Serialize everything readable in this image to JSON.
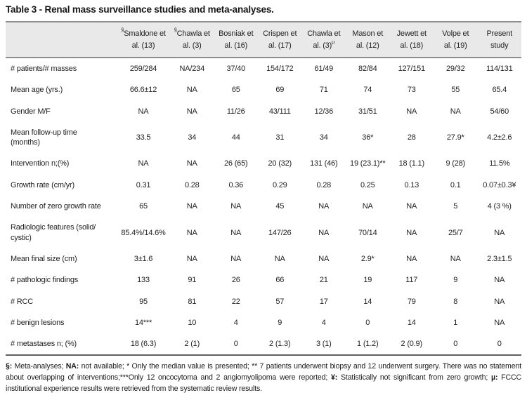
{
  "title": "Table 3 - Renal mass surveillance studies and meta-analyses.",
  "table": {
    "columns": [
      {
        "prefix": "§",
        "line1": "Smaldone et",
        "line2": "al. (13)",
        "suffix": ""
      },
      {
        "prefix": "§",
        "line1": "Chawla et",
        "line2": "al. (3)",
        "suffix": ""
      },
      {
        "prefix": "",
        "line1": "Bosniak et",
        "line2": "al. (16)",
        "suffix": ""
      },
      {
        "prefix": "",
        "line1": "Crispen et",
        "line2": "al. (17)",
        "suffix": ""
      },
      {
        "prefix": "",
        "line1": "Chawla et",
        "line2": "al. (3)",
        "suffix": "µ"
      },
      {
        "prefix": "",
        "line1": "Mason et",
        "line2": "al. (12)",
        "suffix": ""
      },
      {
        "prefix": "",
        "line1": "Jewett et",
        "line2": "al. (18)",
        "suffix": ""
      },
      {
        "prefix": "",
        "line1": "Volpe et",
        "line2": "al. (19)",
        "suffix": ""
      },
      {
        "prefix": "",
        "line1": "Present",
        "line2": "study",
        "suffix": ""
      }
    ],
    "rows": [
      {
        "label": [
          "# patients/# masses"
        ],
        "values": [
          "259/284",
          "NA/234",
          "37/40",
          "154/172",
          "61/49",
          "82/84",
          "127/151",
          "29/32",
          "114/131"
        ]
      },
      {
        "label": [
          "Mean age (yrs.)"
        ],
        "values": [
          "66.6±12",
          "NA",
          "65",
          "69",
          "71",
          "74",
          "73",
          "55",
          "65.4"
        ]
      },
      {
        "label": [
          "Gender M/F"
        ],
        "values": [
          "NA",
          "NA",
          "11/26",
          "43/111",
          "12/36",
          "31/51",
          "NA",
          "NA",
          "54/60"
        ]
      },
      {
        "label": [
          "Mean follow-up time",
          "(months)"
        ],
        "values": [
          "33.5",
          "34",
          "44",
          "31",
          "34",
          "36*",
          "28",
          "27.9*",
          "4.2±2.6"
        ]
      },
      {
        "label": [
          "Intervention n;(%)"
        ],
        "values": [
          "NA",
          "NA",
          "26 (65)",
          "20 (32)",
          "131 (46)",
          "19 (23.1)**",
          "18 (1.1)",
          "9 (28)",
          "11.5%"
        ]
      },
      {
        "label": [
          "Growth rate (cm/yr)"
        ],
        "values": [
          "0.31",
          "0.28",
          "0.36",
          "0.29",
          "0.28",
          "0.25",
          "0.13",
          "0.1",
          "0.07±0.3¥"
        ]
      },
      {
        "label": [
          "Number of zero growth rate"
        ],
        "values": [
          "65",
          "NA",
          "NA",
          "45",
          "NA",
          "NA",
          "NA",
          "5",
          "4 (3 %)"
        ]
      },
      {
        "label": [
          "Radiologic features (solid/",
          "cystic)"
        ],
        "values": [
          "85.4%/14.6%",
          "NA",
          "NA",
          "147/26",
          "NA",
          "70/14",
          "NA",
          "25/7",
          "NA"
        ]
      },
      {
        "label": [
          "Mean final size (cm)"
        ],
        "values": [
          "3±1.6",
          "NA",
          "NA",
          "NA",
          "NA",
          "2.9*",
          "NA",
          "NA",
          "2.3±1.5"
        ]
      },
      {
        "label": [
          "# pathologic findings"
        ],
        "values": [
          "133",
          "91",
          "26",
          "66",
          "21",
          "19",
          "117",
          "9",
          "NA"
        ]
      },
      {
        "label": [
          "# RCC"
        ],
        "values": [
          "95",
          "81",
          "22",
          "57",
          "17",
          "14",
          "79",
          "8",
          "NA"
        ]
      },
      {
        "label": [
          "# benign lesions"
        ],
        "values": [
          "14***",
          "10",
          "4",
          "9",
          "4",
          "0",
          "14",
          "1",
          "NA"
        ]
      },
      {
        "label": [
          "# metastases n; (%)"
        ],
        "values": [
          "18 (6.3)",
          "2 (1)",
          "0",
          "2 (1.3)",
          "3 (1)",
          "1 (1.2)",
          "2 (0.9)",
          "0",
          "0"
        ]
      }
    ]
  },
  "footnote": {
    "segments": [
      {
        "text": "§:",
        "bold": true
      },
      {
        "text": " Meta-analyses; ",
        "bold": false
      },
      {
        "text": "NA:",
        "bold": true
      },
      {
        "text": " not available; * Only the median value is presented; ** 7 patients underwent biopsy and 12 underwent surgery. There was no statement about overlapping of interventions;***Only 12 oncocytoma and 2 angiomyolipoma were reported; ",
        "bold": false
      },
      {
        "text": "¥:",
        "bold": true
      },
      {
        "text": " Statistically not significant from zero growth; ",
        "bold": false
      },
      {
        "text": "µ:",
        "bold": true
      },
      {
        "text": " FCCC institutional experience results were retrieved from the systematic review results.",
        "bold": false
      }
    ]
  }
}
